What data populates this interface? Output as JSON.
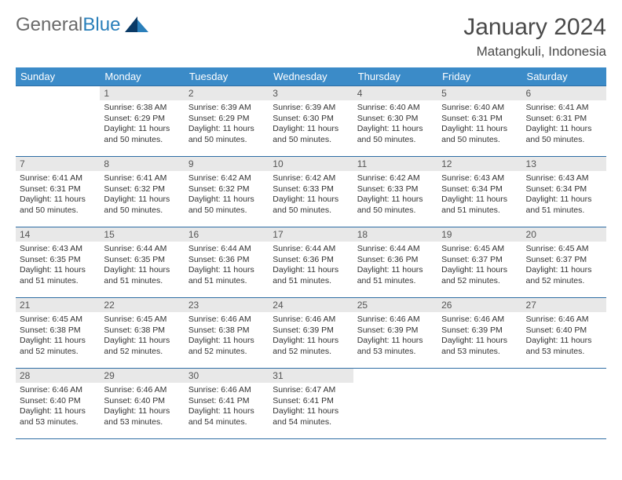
{
  "brand": {
    "text1": "General",
    "text2": "Blue"
  },
  "header": {
    "month": "January 2024",
    "location": "Matangkuli, Indonesia"
  },
  "colors": {
    "header_bg": "#3b8bc8",
    "header_fg": "#ffffff",
    "row_border": "#2e6da4",
    "daynum_bg": "#e8e8e8",
    "brand_gray": "#6a6a6a",
    "brand_blue": "#2a7fba",
    "logo_dark": "#0a3a66",
    "logo_mid": "#2a7fba"
  },
  "typography": {
    "title_fontsize": 30,
    "location_fontsize": 17,
    "dayhead_fontsize": 13,
    "daynum_fontsize": 12,
    "body_fontsize": 10.5
  },
  "calendar": {
    "type": "table",
    "columns": [
      "Sunday",
      "Monday",
      "Tuesday",
      "Wednesday",
      "Thursday",
      "Friday",
      "Saturday"
    ],
    "first_weekday_index": 1,
    "days": [
      {
        "n": 1,
        "sunrise": "6:38 AM",
        "sunset": "6:29 PM",
        "daylight": "11 hours and 50 minutes."
      },
      {
        "n": 2,
        "sunrise": "6:39 AM",
        "sunset": "6:29 PM",
        "daylight": "11 hours and 50 minutes."
      },
      {
        "n": 3,
        "sunrise": "6:39 AM",
        "sunset": "6:30 PM",
        "daylight": "11 hours and 50 minutes."
      },
      {
        "n": 4,
        "sunrise": "6:40 AM",
        "sunset": "6:30 PM",
        "daylight": "11 hours and 50 minutes."
      },
      {
        "n": 5,
        "sunrise": "6:40 AM",
        "sunset": "6:31 PM",
        "daylight": "11 hours and 50 minutes."
      },
      {
        "n": 6,
        "sunrise": "6:41 AM",
        "sunset": "6:31 PM",
        "daylight": "11 hours and 50 minutes."
      },
      {
        "n": 7,
        "sunrise": "6:41 AM",
        "sunset": "6:31 PM",
        "daylight": "11 hours and 50 minutes."
      },
      {
        "n": 8,
        "sunrise": "6:41 AM",
        "sunset": "6:32 PM",
        "daylight": "11 hours and 50 minutes."
      },
      {
        "n": 9,
        "sunrise": "6:42 AM",
        "sunset": "6:32 PM",
        "daylight": "11 hours and 50 minutes."
      },
      {
        "n": 10,
        "sunrise": "6:42 AM",
        "sunset": "6:33 PM",
        "daylight": "11 hours and 50 minutes."
      },
      {
        "n": 11,
        "sunrise": "6:42 AM",
        "sunset": "6:33 PM",
        "daylight": "11 hours and 50 minutes."
      },
      {
        "n": 12,
        "sunrise": "6:43 AM",
        "sunset": "6:34 PM",
        "daylight": "11 hours and 51 minutes."
      },
      {
        "n": 13,
        "sunrise": "6:43 AM",
        "sunset": "6:34 PM",
        "daylight": "11 hours and 51 minutes."
      },
      {
        "n": 14,
        "sunrise": "6:43 AM",
        "sunset": "6:35 PM",
        "daylight": "11 hours and 51 minutes."
      },
      {
        "n": 15,
        "sunrise": "6:44 AM",
        "sunset": "6:35 PM",
        "daylight": "11 hours and 51 minutes."
      },
      {
        "n": 16,
        "sunrise": "6:44 AM",
        "sunset": "6:36 PM",
        "daylight": "11 hours and 51 minutes."
      },
      {
        "n": 17,
        "sunrise": "6:44 AM",
        "sunset": "6:36 PM",
        "daylight": "11 hours and 51 minutes."
      },
      {
        "n": 18,
        "sunrise": "6:44 AM",
        "sunset": "6:36 PM",
        "daylight": "11 hours and 51 minutes."
      },
      {
        "n": 19,
        "sunrise": "6:45 AM",
        "sunset": "6:37 PM",
        "daylight": "11 hours and 52 minutes."
      },
      {
        "n": 20,
        "sunrise": "6:45 AM",
        "sunset": "6:37 PM",
        "daylight": "11 hours and 52 minutes."
      },
      {
        "n": 21,
        "sunrise": "6:45 AM",
        "sunset": "6:38 PM",
        "daylight": "11 hours and 52 minutes."
      },
      {
        "n": 22,
        "sunrise": "6:45 AM",
        "sunset": "6:38 PM",
        "daylight": "11 hours and 52 minutes."
      },
      {
        "n": 23,
        "sunrise": "6:46 AM",
        "sunset": "6:38 PM",
        "daylight": "11 hours and 52 minutes."
      },
      {
        "n": 24,
        "sunrise": "6:46 AM",
        "sunset": "6:39 PM",
        "daylight": "11 hours and 52 minutes."
      },
      {
        "n": 25,
        "sunrise": "6:46 AM",
        "sunset": "6:39 PM",
        "daylight": "11 hours and 53 minutes."
      },
      {
        "n": 26,
        "sunrise": "6:46 AM",
        "sunset": "6:39 PM",
        "daylight": "11 hours and 53 minutes."
      },
      {
        "n": 27,
        "sunrise": "6:46 AM",
        "sunset": "6:40 PM",
        "daylight": "11 hours and 53 minutes."
      },
      {
        "n": 28,
        "sunrise": "6:46 AM",
        "sunset": "6:40 PM",
        "daylight": "11 hours and 53 minutes."
      },
      {
        "n": 29,
        "sunrise": "6:46 AM",
        "sunset": "6:40 PM",
        "daylight": "11 hours and 53 minutes."
      },
      {
        "n": 30,
        "sunrise": "6:46 AM",
        "sunset": "6:41 PM",
        "daylight": "11 hours and 54 minutes."
      },
      {
        "n": 31,
        "sunrise": "6:47 AM",
        "sunset": "6:41 PM",
        "daylight": "11 hours and 54 minutes."
      }
    ],
    "labels": {
      "sunrise": "Sunrise:",
      "sunset": "Sunset:",
      "daylight": "Daylight:"
    }
  }
}
